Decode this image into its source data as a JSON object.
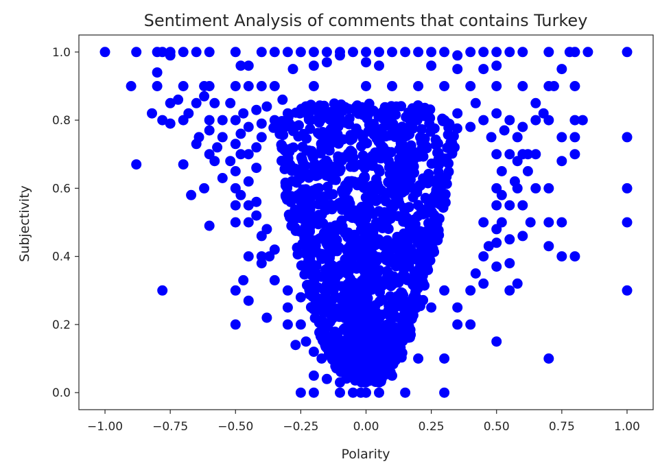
{
  "chart_data": {
    "type": "scatter",
    "title": "Sentiment Analysis of comments that contains Turkey",
    "xlabel": "Polarity",
    "ylabel": "Subjectivity",
    "xlim": [
      -1.1,
      1.1
    ],
    "ylim": [
      -0.05,
      1.05
    ],
    "xticks": [
      -1.0,
      -0.75,
      -0.5,
      -0.25,
      0.0,
      0.25,
      0.5,
      0.75,
      1.0
    ],
    "xtick_labels": [
      "−1.00",
      "−0.75",
      "−0.50",
      "−0.25",
      "0.00",
      "0.25",
      "0.50",
      "0.75",
      "1.00"
    ],
    "yticks": [
      0.0,
      0.2,
      0.4,
      0.6,
      0.8,
      1.0
    ],
    "ytick_labels": [
      "0.0",
      "0.2",
      "0.4",
      "0.6",
      "0.8",
      "1.0"
    ],
    "grid": false,
    "marker_color": "#0000ff",
    "series": [
      {
        "points": [
          [
            -1.0,
            1.0
          ],
          [
            -0.88,
            1.0
          ],
          [
            -0.8,
            1.0
          ],
          [
            -0.78,
            1.0
          ],
          [
            -0.75,
            1.0
          ],
          [
            -0.7,
            1.0
          ],
          [
            -0.65,
            1.0
          ],
          [
            -0.6,
            1.0
          ],
          [
            -0.5,
            1.0
          ],
          [
            -0.4,
            1.0
          ],
          [
            -0.35,
            1.0
          ],
          [
            -0.3,
            1.0
          ],
          [
            -0.25,
            1.0
          ],
          [
            -0.2,
            1.0
          ],
          [
            -0.15,
            1.0
          ],
          [
            -0.1,
            1.0
          ],
          [
            -0.05,
            1.0
          ],
          [
            0.0,
            1.0
          ],
          [
            0.05,
            1.0
          ],
          [
            0.1,
            1.0
          ],
          [
            0.15,
            1.0
          ],
          [
            0.2,
            1.0
          ],
          [
            0.25,
            1.0
          ],
          [
            0.3,
            1.0
          ],
          [
            0.4,
            1.0
          ],
          [
            0.45,
            1.0
          ],
          [
            0.5,
            1.0
          ],
          [
            0.55,
            1.0
          ],
          [
            0.6,
            1.0
          ],
          [
            0.7,
            1.0
          ],
          [
            0.78,
            1.0
          ],
          [
            0.8,
            1.0
          ],
          [
            0.85,
            1.0
          ],
          [
            1.0,
            1.0
          ],
          [
            -0.9,
            0.9
          ],
          [
            -0.8,
            0.9
          ],
          [
            -0.7,
            0.9
          ],
          [
            -0.62,
            0.9
          ],
          [
            -0.6,
            0.9
          ],
          [
            -0.5,
            0.9
          ],
          [
            -0.45,
            0.9
          ],
          [
            -0.4,
            0.9
          ],
          [
            -0.35,
            0.9
          ],
          [
            -0.2,
            0.9
          ],
          [
            0.0,
            0.9
          ],
          [
            0.1,
            0.9
          ],
          [
            0.2,
            0.9
          ],
          [
            0.3,
            0.9
          ],
          [
            0.4,
            0.9
          ],
          [
            0.5,
            0.9
          ],
          [
            0.6,
            0.9
          ],
          [
            0.7,
            0.9
          ],
          [
            0.8,
            0.9
          ],
          [
            -0.8,
            0.94
          ],
          [
            -0.48,
            0.96
          ],
          [
            -0.45,
            0.96
          ],
          [
            -0.28,
            0.95
          ],
          [
            -0.2,
            0.96
          ],
          [
            -0.15,
            0.97
          ],
          [
            0.0,
            0.97
          ],
          [
            0.05,
            0.96
          ],
          [
            0.25,
            0.96
          ],
          [
            0.35,
            0.95
          ],
          [
            0.45,
            0.95
          ],
          [
            0.5,
            0.96
          ],
          [
            0.75,
            0.95
          ],
          [
            -0.75,
            0.99
          ],
          [
            -0.1,
            0.99
          ],
          [
            0.35,
            0.99
          ],
          [
            -0.82,
            0.82
          ],
          [
            -0.78,
            0.8
          ],
          [
            -0.75,
            0.85
          ],
          [
            -0.72,
            0.86
          ],
          [
            -0.68,
            0.82
          ],
          [
            -0.65,
            0.85
          ],
          [
            -0.62,
            0.87
          ],
          [
            -0.6,
            0.8
          ],
          [
            -0.58,
            0.85
          ],
          [
            -0.55,
            0.8
          ],
          [
            -0.52,
            0.85
          ],
          [
            -0.5,
            0.8
          ],
          [
            -0.47,
            0.82
          ],
          [
            -0.45,
            0.78
          ],
          [
            -0.42,
            0.83
          ],
          [
            -0.4,
            0.79
          ],
          [
            -0.38,
            0.84
          ],
          [
            -0.35,
            0.8
          ],
          [
            -0.32,
            0.86
          ],
          [
            -0.3,
            0.82
          ],
          [
            -0.75,
            0.79
          ],
          [
            -0.7,
            0.8
          ],
          [
            -0.64,
            0.75
          ],
          [
            -0.6,
            0.77
          ],
          [
            -0.57,
            0.72
          ],
          [
            -0.55,
            0.75
          ],
          [
            -0.5,
            0.73
          ],
          [
            -0.48,
            0.76
          ],
          [
            -0.45,
            0.7
          ],
          [
            -0.42,
            0.72
          ],
          [
            -0.4,
            0.75
          ],
          [
            -0.88,
            0.67
          ],
          [
            -0.7,
            0.67
          ],
          [
            -0.65,
            0.73
          ],
          [
            -0.6,
            0.7
          ],
          [
            -0.58,
            0.68
          ],
          [
            -0.55,
            0.63
          ],
          [
            -0.52,
            0.68
          ],
          [
            -0.5,
            0.65
          ],
          [
            -0.48,
            0.7
          ],
          [
            -0.45,
            0.62
          ],
          [
            -0.42,
            0.66
          ],
          [
            -0.62,
            0.6
          ],
          [
            -0.67,
            0.58
          ],
          [
            -0.5,
            0.6
          ],
          [
            -0.48,
            0.58
          ],
          [
            -0.45,
            0.55
          ],
          [
            -0.5,
            0.55
          ],
          [
            -0.42,
            0.56
          ],
          [
            -0.6,
            0.49
          ],
          [
            -0.5,
            0.5
          ],
          [
            -0.45,
            0.5
          ],
          [
            -0.42,
            0.52
          ],
          [
            -0.4,
            0.46
          ],
          [
            -0.38,
            0.48
          ],
          [
            -0.45,
            0.4
          ],
          [
            -0.4,
            0.38
          ],
          [
            -0.4,
            0.4
          ],
          [
            -0.37,
            0.4
          ],
          [
            -0.35,
            0.42
          ],
          [
            -0.78,
            0.3
          ],
          [
            -0.5,
            0.3
          ],
          [
            -0.47,
            0.33
          ],
          [
            -0.45,
            0.27
          ],
          [
            -0.35,
            0.33
          ],
          [
            -0.3,
            0.3
          ],
          [
            -0.3,
            0.25
          ],
          [
            -0.25,
            0.28
          ],
          [
            -0.5,
            0.2
          ],
          [
            -0.38,
            0.22
          ],
          [
            -0.3,
            0.2
          ],
          [
            -0.25,
            0.2
          ],
          [
            -0.27,
            0.14
          ],
          [
            -0.23,
            0.15
          ],
          [
            -0.2,
            0.12
          ],
          [
            -0.17,
            0.1
          ],
          [
            -0.2,
            0.05
          ],
          [
            -0.15,
            0.04
          ],
          [
            -0.1,
            0.03
          ],
          [
            -0.25,
            0.0
          ],
          [
            -0.2,
            0.0
          ],
          [
            -0.1,
            0.0
          ],
          [
            -0.05,
            0.0
          ],
          [
            -0.02,
            0.0
          ],
          [
            0.0,
            0.0
          ],
          [
            0.05,
            0.0
          ],
          [
            0.15,
            0.0
          ],
          [
            0.3,
            0.0
          ],
          [
            0.3,
            0.1
          ],
          [
            0.2,
            0.1
          ],
          [
            0.1,
            0.05
          ],
          [
            0.05,
            0.03
          ],
          [
            0.3,
            0.8
          ],
          [
            0.35,
            0.82
          ],
          [
            0.4,
            0.78
          ],
          [
            0.42,
            0.85
          ],
          [
            0.45,
            0.8
          ],
          [
            0.48,
            0.75
          ],
          [
            0.5,
            0.82
          ],
          [
            0.53,
            0.77
          ],
          [
            0.55,
            0.8
          ],
          [
            0.58,
            0.75
          ],
          [
            0.6,
            0.78
          ],
          [
            0.62,
            0.7
          ],
          [
            0.65,
            0.85
          ],
          [
            0.65,
            0.8
          ],
          [
            0.7,
            0.8
          ],
          [
            0.68,
            0.82
          ],
          [
            0.72,
            0.9
          ],
          [
            0.5,
            0.7
          ],
          [
            0.52,
            0.65
          ],
          [
            0.55,
            0.7
          ],
          [
            0.58,
            0.68
          ],
          [
            0.6,
            0.7
          ],
          [
            0.62,
            0.65
          ],
          [
            0.65,
            0.7
          ],
          [
            0.75,
            0.75
          ],
          [
            0.75,
            0.68
          ],
          [
            0.8,
            0.7
          ],
          [
            0.8,
            0.75
          ],
          [
            0.8,
            0.8
          ],
          [
            0.83,
            0.8
          ],
          [
            0.5,
            0.6
          ],
          [
            0.52,
            0.58
          ],
          [
            0.55,
            0.55
          ],
          [
            0.58,
            0.6
          ],
          [
            0.6,
            0.55
          ],
          [
            0.65,
            0.6
          ],
          [
            0.7,
            0.6
          ],
          [
            0.57,
            0.62
          ],
          [
            0.5,
            0.55
          ],
          [
            0.45,
            0.5
          ],
          [
            0.5,
            0.48
          ],
          [
            0.52,
            0.5
          ],
          [
            0.55,
            0.45
          ],
          [
            0.6,
            0.46
          ],
          [
            0.63,
            0.5
          ],
          [
            0.7,
            0.5
          ],
          [
            0.75,
            0.5
          ],
          [
            0.5,
            0.44
          ],
          [
            0.47,
            0.43
          ],
          [
            0.45,
            0.4
          ],
          [
            0.5,
            0.37
          ],
          [
            0.55,
            0.38
          ],
          [
            0.7,
            0.43
          ],
          [
            0.75,
            0.4
          ],
          [
            0.8,
            0.4
          ],
          [
            0.42,
            0.35
          ],
          [
            0.4,
            0.3
          ],
          [
            0.45,
            0.32
          ],
          [
            0.55,
            0.3
          ],
          [
            0.58,
            0.32
          ],
          [
            0.35,
            0.25
          ],
          [
            0.4,
            0.2
          ],
          [
            0.5,
            0.15
          ],
          [
            0.3,
            0.3
          ],
          [
            0.25,
            0.25
          ],
          [
            0.35,
            0.2
          ],
          [
            0.7,
            0.1
          ],
          [
            1.0,
            0.75
          ],
          [
            1.0,
            0.6
          ],
          [
            1.0,
            0.5
          ],
          [
            1.0,
            0.3
          ]
        ],
        "dense_cloud": {
          "x_center": 0.0,
          "upper_half_width": 0.37,
          "lower_half_width": 0.04,
          "y_min": 0.03,
          "y_max": 0.85
        }
      }
    ]
  }
}
